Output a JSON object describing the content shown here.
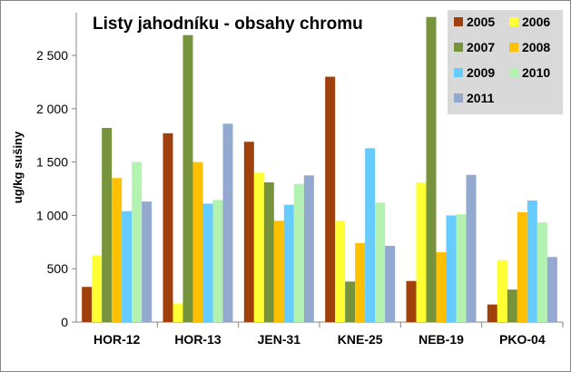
{
  "chart_data": {
    "type": "bar",
    "title": "Listy jahodníku - obsahy chromu",
    "xlabel": "",
    "ylabel": "ug/kg sušiny",
    "ylim": [
      0,
      2900
    ],
    "yticks": [
      0,
      500,
      1000,
      1500,
      2000,
      2500
    ],
    "ytick_labels": [
      "0",
      "500",
      "1 000",
      "1 500",
      "2 000",
      "2 500"
    ],
    "grid": false,
    "legend_position": "top-right",
    "categories": [
      "HOR-12",
      "HOR-13",
      "JEN-31",
      "KNE-25",
      "NEB-19",
      "PKO-04"
    ],
    "series": [
      {
        "name": "2005",
        "color": "#a0410d",
        "values": [
          330,
          1770,
          1690,
          2300,
          385,
          165
        ]
      },
      {
        "name": "2006",
        "color": "#ffff33",
        "values": [
          625,
          175,
          1400,
          950,
          1310,
          580
        ]
      },
      {
        "name": "2007",
        "color": "#77933c",
        "values": [
          1820,
          2690,
          1310,
          380,
          2860,
          305
        ]
      },
      {
        "name": "2008",
        "color": "#ffc000",
        "values": [
          1350,
          1500,
          950,
          740,
          655,
          1030
        ]
      },
      {
        "name": "2009",
        "color": "#66ccff",
        "values": [
          1040,
          1110,
          1100,
          1630,
          1000,
          1140
        ]
      },
      {
        "name": "2010",
        "color": "#b3f2b0",
        "values": [
          1500,
          1145,
          1295,
          1120,
          1010,
          935
        ]
      },
      {
        "name": "2011",
        "color": "#93a9cf",
        "values": [
          1130,
          1860,
          1375,
          715,
          1380,
          610
        ]
      }
    ]
  }
}
